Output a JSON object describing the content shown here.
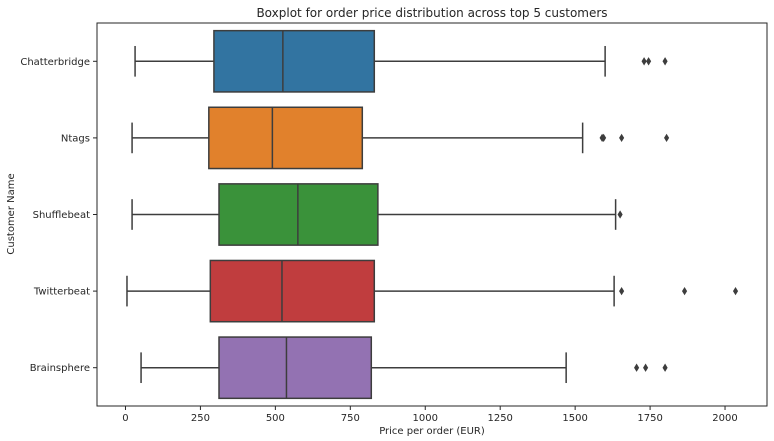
{
  "chart_data": {
    "type": "boxplot",
    "orientation": "horizontal",
    "title": "Boxplot for order price distribution across top 5 customers",
    "xlabel": "Price per order (EUR)",
    "ylabel": "Customer Name",
    "xlim": [
      -95,
      2140
    ],
    "xticks": [
      0,
      250,
      500,
      750,
      1000,
      1250,
      1500,
      1750,
      2000
    ],
    "xtick_labels": [
      "0",
      "250",
      "500",
      "750",
      "1000",
      "1250",
      "1500",
      "1750",
      "2000"
    ],
    "grid": false,
    "categories": [
      "Chatterbridge",
      "Ntags",
      "Shufflebeat",
      "Twitterbeat",
      "Brainsphere"
    ],
    "boxes": [
      {
        "name": "Chatterbridge",
        "whisker_low": 32,
        "q1": 295,
        "median": 525,
        "q3": 830,
        "whisker_high": 1600,
        "outliers": [
          1730,
          1745,
          1800
        ],
        "color": "#3274a1"
      },
      {
        "name": "Ntags",
        "whisker_low": 22,
        "q1": 278,
        "median": 490,
        "q3": 790,
        "whisker_high": 1525,
        "outliers": [
          1590,
          1595,
          1655,
          1805
        ],
        "color": "#e1812c"
      },
      {
        "name": "Shufflebeat",
        "whisker_low": 22,
        "q1": 312,
        "median": 575,
        "q3": 842,
        "whisker_high": 1635,
        "outliers": [
          1650
        ],
        "color": "#3a923a"
      },
      {
        "name": "Twitterbeat",
        "whisker_low": 5,
        "q1": 283,
        "median": 522,
        "q3": 830,
        "whisker_high": 1630,
        "outliers": [
          1655,
          1865,
          2035
        ],
        "color": "#c03d3e"
      },
      {
        "name": "Brainsphere",
        "whisker_low": 52,
        "q1": 312,
        "median": 537,
        "q3": 820,
        "whisker_high": 1470,
        "outliers": [
          1705,
          1735,
          1800
        ],
        "color": "#9372b2"
      }
    ]
  }
}
